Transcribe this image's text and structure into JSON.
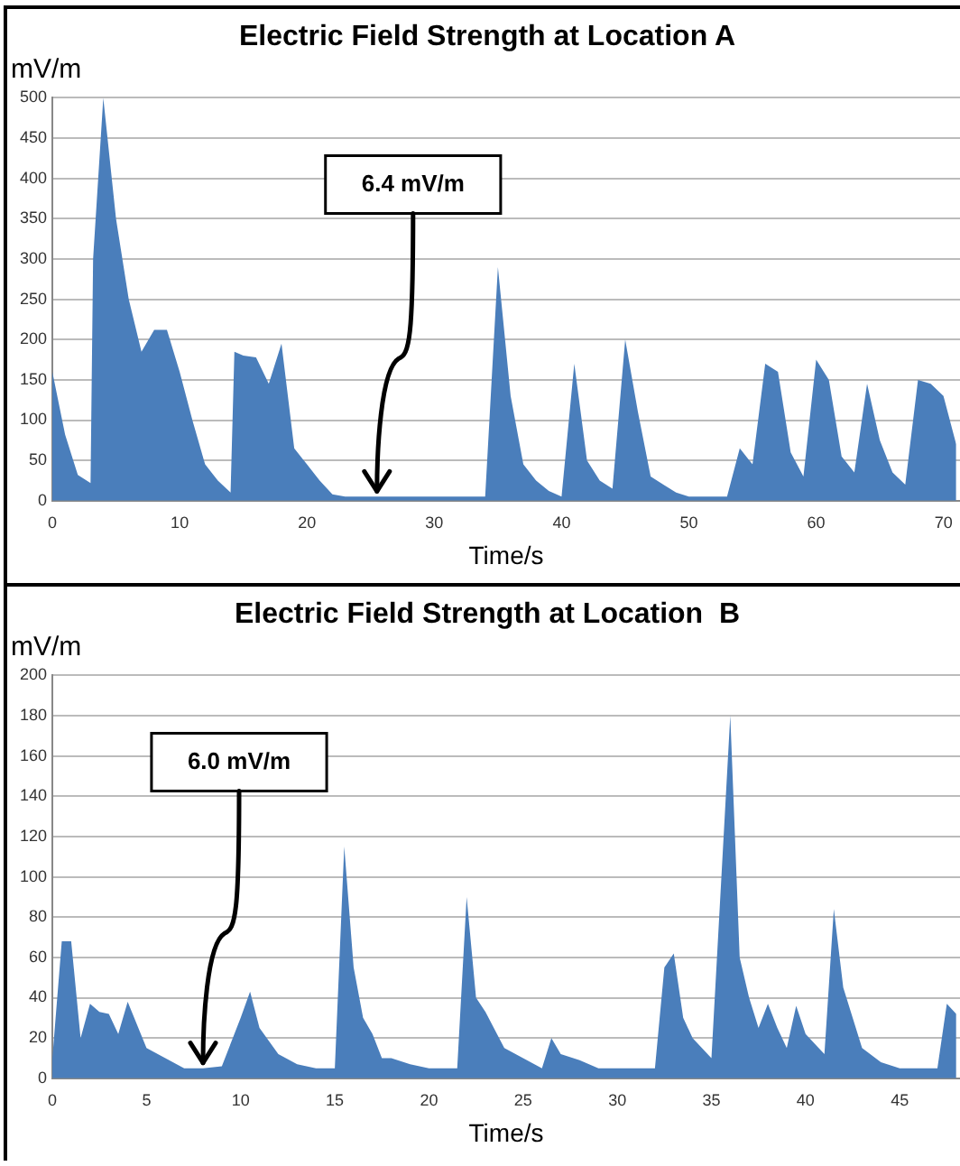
{
  "chart_data": [
    {
      "type": "area",
      "title": "Electric Field Strength at Location A",
      "ylabel": "mV/m",
      "xlabel": "Time/s",
      "x": [
        0,
        1,
        2,
        3,
        3.2,
        4,
        5,
        6,
        7,
        8,
        9,
        10,
        11,
        12,
        13,
        14,
        14.3,
        15,
        16,
        17,
        18,
        19,
        20,
        21,
        22,
        23,
        25,
        30,
        34,
        35,
        36,
        37,
        38,
        39,
        40,
        41,
        42,
        43,
        44,
        45,
        46,
        47,
        48,
        49,
        50,
        53,
        54,
        55,
        56,
        57,
        58,
        59,
        60,
        61,
        62,
        63,
        64,
        65,
        66,
        67,
        68,
        69,
        70,
        71
      ],
      "series": [
        {
          "color": "#4a7ebb",
          "values": [
            160,
            82,
            32,
            22,
            300,
            500,
            350,
            250,
            185,
            212,
            212,
            160,
            100,
            45,
            25,
            10,
            185,
            180,
            178,
            145,
            195,
            65,
            45,
            25,
            8,
            5,
            5,
            5,
            5,
            290,
            130,
            45,
            25,
            12,
            5,
            170,
            50,
            25,
            15,
            200,
            110,
            30,
            20,
            10,
            5,
            5,
            65,
            45,
            170,
            160,
            60,
            30,
            175,
            150,
            55,
            35,
            145,
            75,
            35,
            20,
            150,
            145,
            130,
            70
          ]
        }
      ],
      "xlim": [
        0,
        71.3
      ],
      "xticks": [
        0,
        10,
        20,
        30,
        40,
        50,
        60,
        70
      ],
      "ylim": [
        0,
        500
      ],
      "yticks": [
        0,
        50,
        100,
        150,
        200,
        250,
        300,
        350,
        400,
        450,
        500
      ],
      "grid": "y",
      "legend": false,
      "marker": "none",
      "annotations": [
        {
          "text": "6.4 mV/m",
          "x": 25.5,
          "y": 5
        }
      ]
    },
    {
      "type": "area",
      "title": "Electric Field Strength at Location  B",
      "ylabel": "mV/m",
      "xlabel": "Time/s",
      "x": [
        0,
        0.5,
        1,
        1.5,
        2,
        2.5,
        3,
        3.5,
        4,
        5,
        6,
        7,
        8,
        9,
        10,
        10.5,
        11,
        12,
        13,
        14,
        15,
        15.5,
        16,
        16.5,
        17,
        17.5,
        18,
        19,
        20,
        21.5,
        22,
        22.5,
        23,
        24,
        25,
        26,
        26.5,
        27,
        28,
        29,
        32,
        32.5,
        33,
        33.5,
        34,
        35,
        36,
        36.5,
        37,
        37.5,
        38,
        38.5,
        39,
        39.5,
        40,
        41,
        41.5,
        42,
        43,
        44,
        45,
        47,
        47.5,
        48
      ],
      "series": [
        {
          "color": "#4a7ebb",
          "values": [
            10,
            68,
            68,
            20,
            37,
            33,
            32,
            22,
            38,
            15,
            10,
            5,
            5,
            6,
            30,
            43,
            25,
            12,
            7,
            5,
            5,
            115,
            55,
            30,
            22,
            10,
            10,
            7,
            5,
            5,
            90,
            40,
            33,
            15,
            10,
            5,
            20,
            12,
            9,
            5,
            5,
            55,
            62,
            30,
            20,
            10,
            180,
            60,
            40,
            25,
            37,
            25,
            15,
            36,
            22,
            12,
            84,
            45,
            15,
            8,
            5,
            5,
            37,
            32
          ]
        }
      ],
      "xlim": [
        0,
        48.2
      ],
      "xticks": [
        0,
        5,
        10,
        15,
        20,
        25,
        30,
        35,
        40,
        45
      ],
      "ylim": [
        0,
        200
      ],
      "yticks": [
        0,
        20,
        40,
        60,
        80,
        100,
        120,
        140,
        160,
        180,
        200
      ],
      "grid": "y",
      "legend": false,
      "marker": "none",
      "annotations": [
        {
          "text": "6.0 mV/m",
          "x": 8,
          "y": 5
        }
      ]
    }
  ]
}
